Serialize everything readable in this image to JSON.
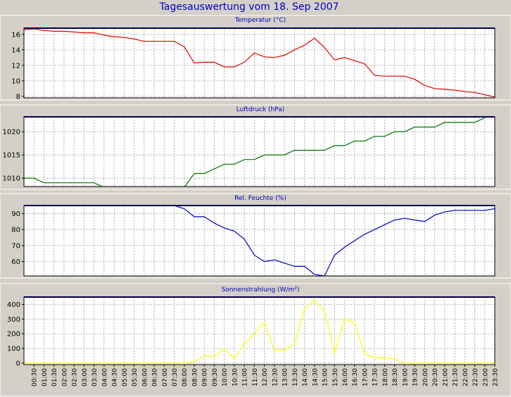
{
  "page_title": "Tagesauswertung vom 18. Sep 2007",
  "x_ticks": [
    "00:30",
    "01:00",
    "01:30",
    "02:00",
    "02:30",
    "03:00",
    "03:30",
    "04:00",
    "04:30",
    "05:00",
    "05:30",
    "06:00",
    "06:30",
    "07:00",
    "07:30",
    "08:00",
    "08:30",
    "09:00",
    "09:30",
    "10:00",
    "10:30",
    "11:00",
    "11:30",
    "12:00",
    "12:30",
    "13:00",
    "13:30",
    "14:00",
    "14:30",
    "15:00",
    "15:30",
    "16:00",
    "16:30",
    "17:00",
    "17:30",
    "18:00",
    "18:30",
    "19:00",
    "19:30",
    "20:00",
    "20:30",
    "21:00",
    "21:30",
    "22:00",
    "22:30",
    "23:00",
    "23:30"
  ],
  "colors": {
    "background": "#d4d0c8",
    "plot_bg": "#ffffff",
    "grid": "#8c8c8c",
    "title": "#0000c0"
  },
  "chart_data": [
    {
      "type": "line",
      "title": "Temperatur (°C)",
      "ylim": [
        7.8,
        16.8
      ],
      "yticks": [
        "8",
        "10",
        "12",
        "14",
        "16"
      ],
      "ytick_values": [
        8,
        10,
        12,
        14,
        16
      ],
      "color": "#e00000",
      "x": [
        "00:00",
        "00:30",
        "01:00",
        "01:30",
        "02:00",
        "02:30",
        "03:00",
        "03:30",
        "04:00",
        "04:30",
        "05:00",
        "05:30",
        "06:00",
        "06:30",
        "07:00",
        "07:30",
        "08:00",
        "08:30",
        "09:00",
        "09:30",
        "10:00",
        "10:30",
        "11:00",
        "11:30",
        "12:00",
        "12:30",
        "13:00",
        "13:30",
        "14:00",
        "14:30",
        "15:00",
        "15:30",
        "16:00",
        "16:30",
        "17:00",
        "17:30",
        "18:00",
        "18:30",
        "19:00",
        "19:30",
        "20:00",
        "20:30",
        "21:00",
        "21:30",
        "22:00",
        "22:30",
        "23:00",
        "23:30"
      ],
      "values": [
        16.6,
        16.7,
        16.5,
        16.4,
        16.4,
        16.3,
        16.2,
        16.2,
        15.9,
        15.7,
        15.6,
        15.4,
        15.1,
        15.1,
        15.1,
        15.1,
        14.4,
        12.3,
        12.4,
        12.4,
        11.8,
        11.8,
        12.4,
        13.6,
        13.1,
        13.0,
        13.3,
        14.0,
        14.6,
        15.5,
        14.3,
        12.7,
        13.0,
        12.6,
        12.2,
        10.7,
        10.6,
        10.6,
        10.6,
        10.2,
        9.4,
        9.0,
        8.9,
        8.8,
        8.6,
        8.5,
        8.2,
        7.9
      ]
    },
    {
      "type": "line",
      "title": "Luftdruck (hPa)",
      "ylim": [
        1008.2,
        1023.2
      ],
      "yticks": [
        "1010",
        "1015",
        "1020"
      ],
      "ytick_values": [
        1010,
        1015,
        1020
      ],
      "color": "#007000",
      "x": [
        "00:00",
        "00:30",
        "01:00",
        "01:30",
        "02:00",
        "02:30",
        "03:00",
        "03:30",
        "04:00",
        "04:30",
        "05:00",
        "05:30",
        "06:00",
        "06:30",
        "07:00",
        "07:30",
        "08:00",
        "08:30",
        "09:00",
        "09:30",
        "10:00",
        "10:30",
        "11:00",
        "11:30",
        "12:00",
        "12:30",
        "13:00",
        "13:30",
        "14:00",
        "14:30",
        "15:00",
        "15:30",
        "16:00",
        "16:30",
        "17:00",
        "17:30",
        "18:00",
        "18:30",
        "19:00",
        "19:30",
        "20:00",
        "20:30",
        "21:00",
        "21:30",
        "22:00",
        "22:30",
        "23:00"
      ],
      "values": [
        1010,
        1010,
        1009,
        1009,
        1009,
        1009,
        1009,
        1009,
        1008,
        1008,
        1008,
        1008,
        1008,
        1008,
        1008,
        1008,
        1008,
        1011,
        1011,
        1012,
        1013,
        1013,
        1014,
        1014,
        1015,
        1015,
        1015,
        1016,
        1016,
        1016,
        1016,
        1017,
        1017,
        1018,
        1018,
        1019,
        1019,
        1020,
        1020,
        1021,
        1021,
        1021,
        1022,
        1022,
        1022,
        1022,
        1023
      ]
    },
    {
      "type": "line",
      "title": "Rel. Feuchte (%)",
      "ylim": [
        51,
        95
      ],
      "yticks": [
        "60",
        "70",
        "80",
        "90"
      ],
      "ytick_values": [
        60,
        70,
        80,
        90
      ],
      "color": "#0000c8",
      "x": [
        "07:30",
        "08:00",
        "08:30",
        "09:00",
        "09:30",
        "10:00",
        "10:30",
        "11:00",
        "11:30",
        "12:00",
        "12:30",
        "13:00",
        "13:30",
        "14:00",
        "14:30",
        "15:00",
        "15:30",
        "16:00",
        "16:30",
        "17:00",
        "17:30",
        "18:00",
        "18:30",
        "19:00",
        "19:30",
        "20:00",
        "20:30",
        "21:00",
        "21:30",
        "22:00",
        "22:30",
        "23:00",
        "23:30"
      ],
      "values": [
        95,
        93,
        88,
        88,
        84,
        81,
        79,
        74,
        64,
        60,
        61,
        59,
        57,
        57,
        52,
        51,
        64,
        69,
        73,
        77,
        80,
        83,
        86,
        87,
        86,
        85,
        89,
        91,
        92,
        92,
        92,
        92,
        93
      ]
    },
    {
      "type": "line",
      "title": "Sonnenstrahlung (W/m²)",
      "ylim": [
        -10,
        450
      ],
      "yticks": [
        "0",
        "100",
        "200",
        "300",
        "400"
      ],
      "ytick_values": [
        0,
        100,
        200,
        300,
        400
      ],
      "color": "#ffff00",
      "x": [
        "00:00",
        "00:30",
        "01:00",
        "01:30",
        "02:00",
        "02:30",
        "03:00",
        "03:30",
        "04:00",
        "04:30",
        "05:00",
        "05:30",
        "06:00",
        "06:30",
        "07:00",
        "07:30",
        "08:00",
        "08:30",
        "09:00",
        "09:30",
        "10:00",
        "10:30",
        "11:00",
        "11:30",
        "12:00",
        "12:30",
        "13:00",
        "13:30",
        "14:00",
        "14:30",
        "15:00",
        "15:30",
        "16:00",
        "16:30",
        "17:00",
        "17:30",
        "18:00",
        "18:30",
        "19:00",
        "19:30",
        "20:00",
        "20:30",
        "21:00",
        "21:30",
        "22:00",
        "22:30",
        "23:00",
        "23:30"
      ],
      "values": [
        0,
        0,
        0,
        0,
        0,
        0,
        0,
        0,
        0,
        0,
        0,
        0,
        0,
        0,
        0,
        0,
        0,
        10,
        50,
        45,
        100,
        30,
        130,
        200,
        280,
        90,
        90,
        130,
        370,
        430,
        350,
        70,
        300,
        275,
        60,
        40,
        35,
        30,
        0,
        0,
        0,
        0,
        0,
        0,
        0,
        0,
        0,
        0
      ]
    }
  ]
}
